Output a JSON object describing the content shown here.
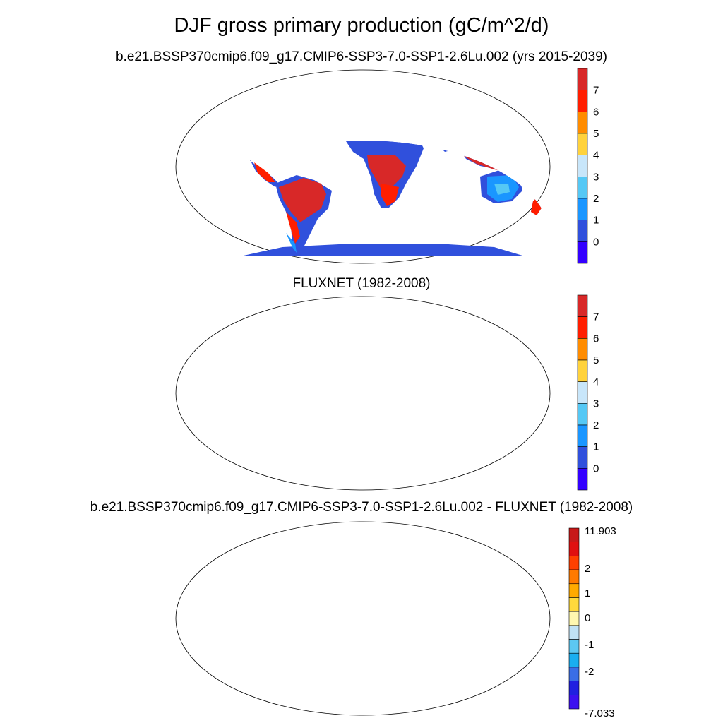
{
  "title": "DJF gross primary production (gC/m^2/d)",
  "panels": [
    {
      "title": "b.e21.BSSP370cmip6.f09_g17.CMIP6-SSP3-7.0-SSP1-2.6Lu.002 (yrs 2015-2039)",
      "colorbar": {
        "colors": [
          "#3300ff",
          "#3050dc",
          "#1a96ff",
          "#55c8f5",
          "#c8e6fa",
          "#ffd23c",
          "#ff8c00",
          "#ff1e00",
          "#d82828"
        ],
        "labels": [
          "0",
          "1",
          "2",
          "3",
          "4",
          "5",
          "6",
          "7"
        ]
      },
      "map": "model"
    },
    {
      "title": "FLUXNET (1982-2008)",
      "colorbar": {
        "colors": [
          "#3300ff",
          "#3050dc",
          "#1a96ff",
          "#55c8f5",
          "#c8e6fa",
          "#ffd23c",
          "#ff8c00",
          "#ff1e00",
          "#d82828"
        ],
        "labels": [
          "0",
          "1",
          "2",
          "3",
          "4",
          "5",
          "6",
          "7"
        ]
      },
      "map": "obs"
    },
    {
      "title": "b.e21.BSSP370cmip6.f09_g17.CMIP6-SSP3-7.0-SSP1-2.6Lu.002 - FLUXNET (1982-2008)",
      "colorbar": {
        "colors": [
          "#3c10f0",
          "#2020e0",
          "#3a6ee6",
          "#1aaef0",
          "#5cc8f2",
          "#c0e2f5",
          "#fff8b0",
          "#ffd93c",
          "#ffaa00",
          "#ff7a00",
          "#ff4000",
          "#e01010",
          "#c81818"
        ],
        "labels": [
          "11.903",
          "2",
          "1",
          "0",
          "-1",
          "-2",
          "-7.033"
        ]
      },
      "map": "diff"
    }
  ]
}
